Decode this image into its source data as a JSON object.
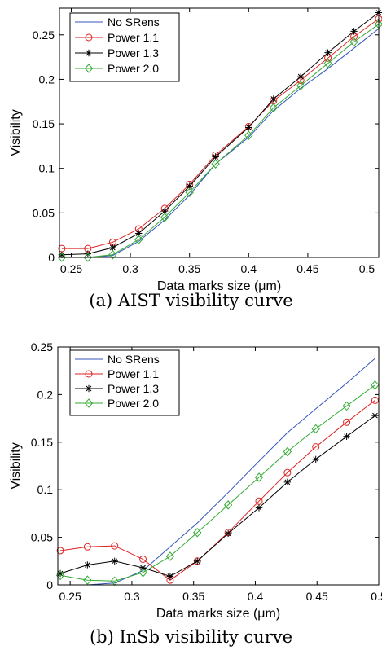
{
  "chart_data": [
    {
      "type": "line",
      "caption": "(a) AIST visibility curve",
      "xlabel": "Data marks size (μm)",
      "ylabel": "Visibility",
      "xlim": [
        0.24,
        0.51
      ],
      "ylim": [
        0,
        0.28
      ],
      "xticks": [
        0.25,
        0.3,
        0.35,
        0.4,
        0.45,
        0.5
      ],
      "xtick_labels": [
        "0.25",
        "0.3",
        "0.35",
        "0.4",
        "0.45",
        "0.5"
      ],
      "yticks": [
        0,
        0.05,
        0.1,
        0.15,
        0.2,
        0.25
      ],
      "ytick_labels": [
        "0",
        "0.05",
        "0.1",
        "0.15",
        "0.2",
        "0.25"
      ],
      "grid": false,
      "legend": "top-left",
      "x": [
        0.242,
        0.264,
        0.285,
        0.307,
        0.329,
        0.35,
        0.372,
        0.4,
        0.421,
        0.444,
        0.467,
        0.489,
        0.51
      ],
      "series": [
        {
          "name": "No SRens",
          "color": "#3355bb",
          "marker": "none",
          "values": [
            0.0,
            0.0,
            0.002,
            0.018,
            0.042,
            0.07,
            0.105,
            0.135,
            0.165,
            0.19,
            0.212,
            0.235,
            0.257
          ]
        },
        {
          "name": "Power 1.1",
          "color": "#dd2222",
          "marker": "circle",
          "values": [
            0.01,
            0.01,
            0.017,
            0.032,
            0.055,
            0.082,
            0.115,
            0.147,
            0.176,
            0.199,
            0.224,
            0.248,
            0.268
          ]
        },
        {
          "name": "Power 1.3",
          "color": "#000000",
          "marker": "star",
          "values": [
            0.003,
            0.004,
            0.011,
            0.027,
            0.052,
            0.08,
            0.113,
            0.146,
            0.178,
            0.203,
            0.23,
            0.254,
            0.275
          ]
        },
        {
          "name": "Power 2.0",
          "color": "#33aa33",
          "marker": "diamond",
          "values": [
            0.0,
            0.0,
            0.003,
            0.02,
            0.045,
            0.073,
            0.105,
            0.137,
            0.168,
            0.193,
            0.218,
            0.242,
            0.262
          ]
        }
      ]
    },
    {
      "type": "line",
      "caption": "(b) InSb visibility curve",
      "xlabel": "Data marks size (μm)",
      "ylabel": "Visibility",
      "xlim": [
        0.24,
        0.5
      ],
      "ylim": [
        0,
        0.25
      ],
      "xticks": [
        0.25,
        0.3,
        0.35,
        0.4,
        0.45,
        0.5
      ],
      "xtick_labels": [
        "0.25",
        "0.3",
        "0.35",
        "0.4",
        "0.45",
        "0.5"
      ],
      "yticks": [
        0,
        0.05,
        0.1,
        0.15,
        0.2,
        0.25
      ],
      "ytick_labels": [
        "0",
        "0.05",
        "0.1",
        "0.15",
        "0.2",
        "0.25"
      ],
      "grid": false,
      "legend": "top-left",
      "x": [
        0.242,
        0.264,
        0.286,
        0.309,
        0.331,
        0.353,
        0.378,
        0.403,
        0.426,
        0.449,
        0.474,
        0.497
      ],
      "series": [
        {
          "name": "No SRens",
          "color": "#3355bb",
          "marker": "none",
          "values": [
            0.0,
            0.0,
            0.002,
            0.015,
            0.04,
            0.065,
            0.097,
            0.13,
            0.16,
            0.185,
            0.212,
            0.238
          ]
        },
        {
          "name": "Power 1.1",
          "color": "#dd2222",
          "marker": "circle",
          "values": [
            0.036,
            0.04,
            0.041,
            0.027,
            0.005,
            0.025,
            0.055,
            0.088,
            0.118,
            0.145,
            0.171,
            0.194
          ]
        },
        {
          "name": "Power 1.3",
          "color": "#000000",
          "marker": "star",
          "values": [
            0.012,
            0.021,
            0.025,
            0.018,
            0.009,
            0.025,
            0.054,
            0.081,
            0.108,
            0.132,
            0.156,
            0.178
          ]
        },
        {
          "name": "Power 2.0",
          "color": "#33aa33",
          "marker": "diamond",
          "values": [
            0.01,
            0.005,
            0.004,
            0.013,
            0.03,
            0.055,
            0.084,
            0.113,
            0.14,
            0.164,
            0.188,
            0.21
          ]
        }
      ]
    }
  ]
}
